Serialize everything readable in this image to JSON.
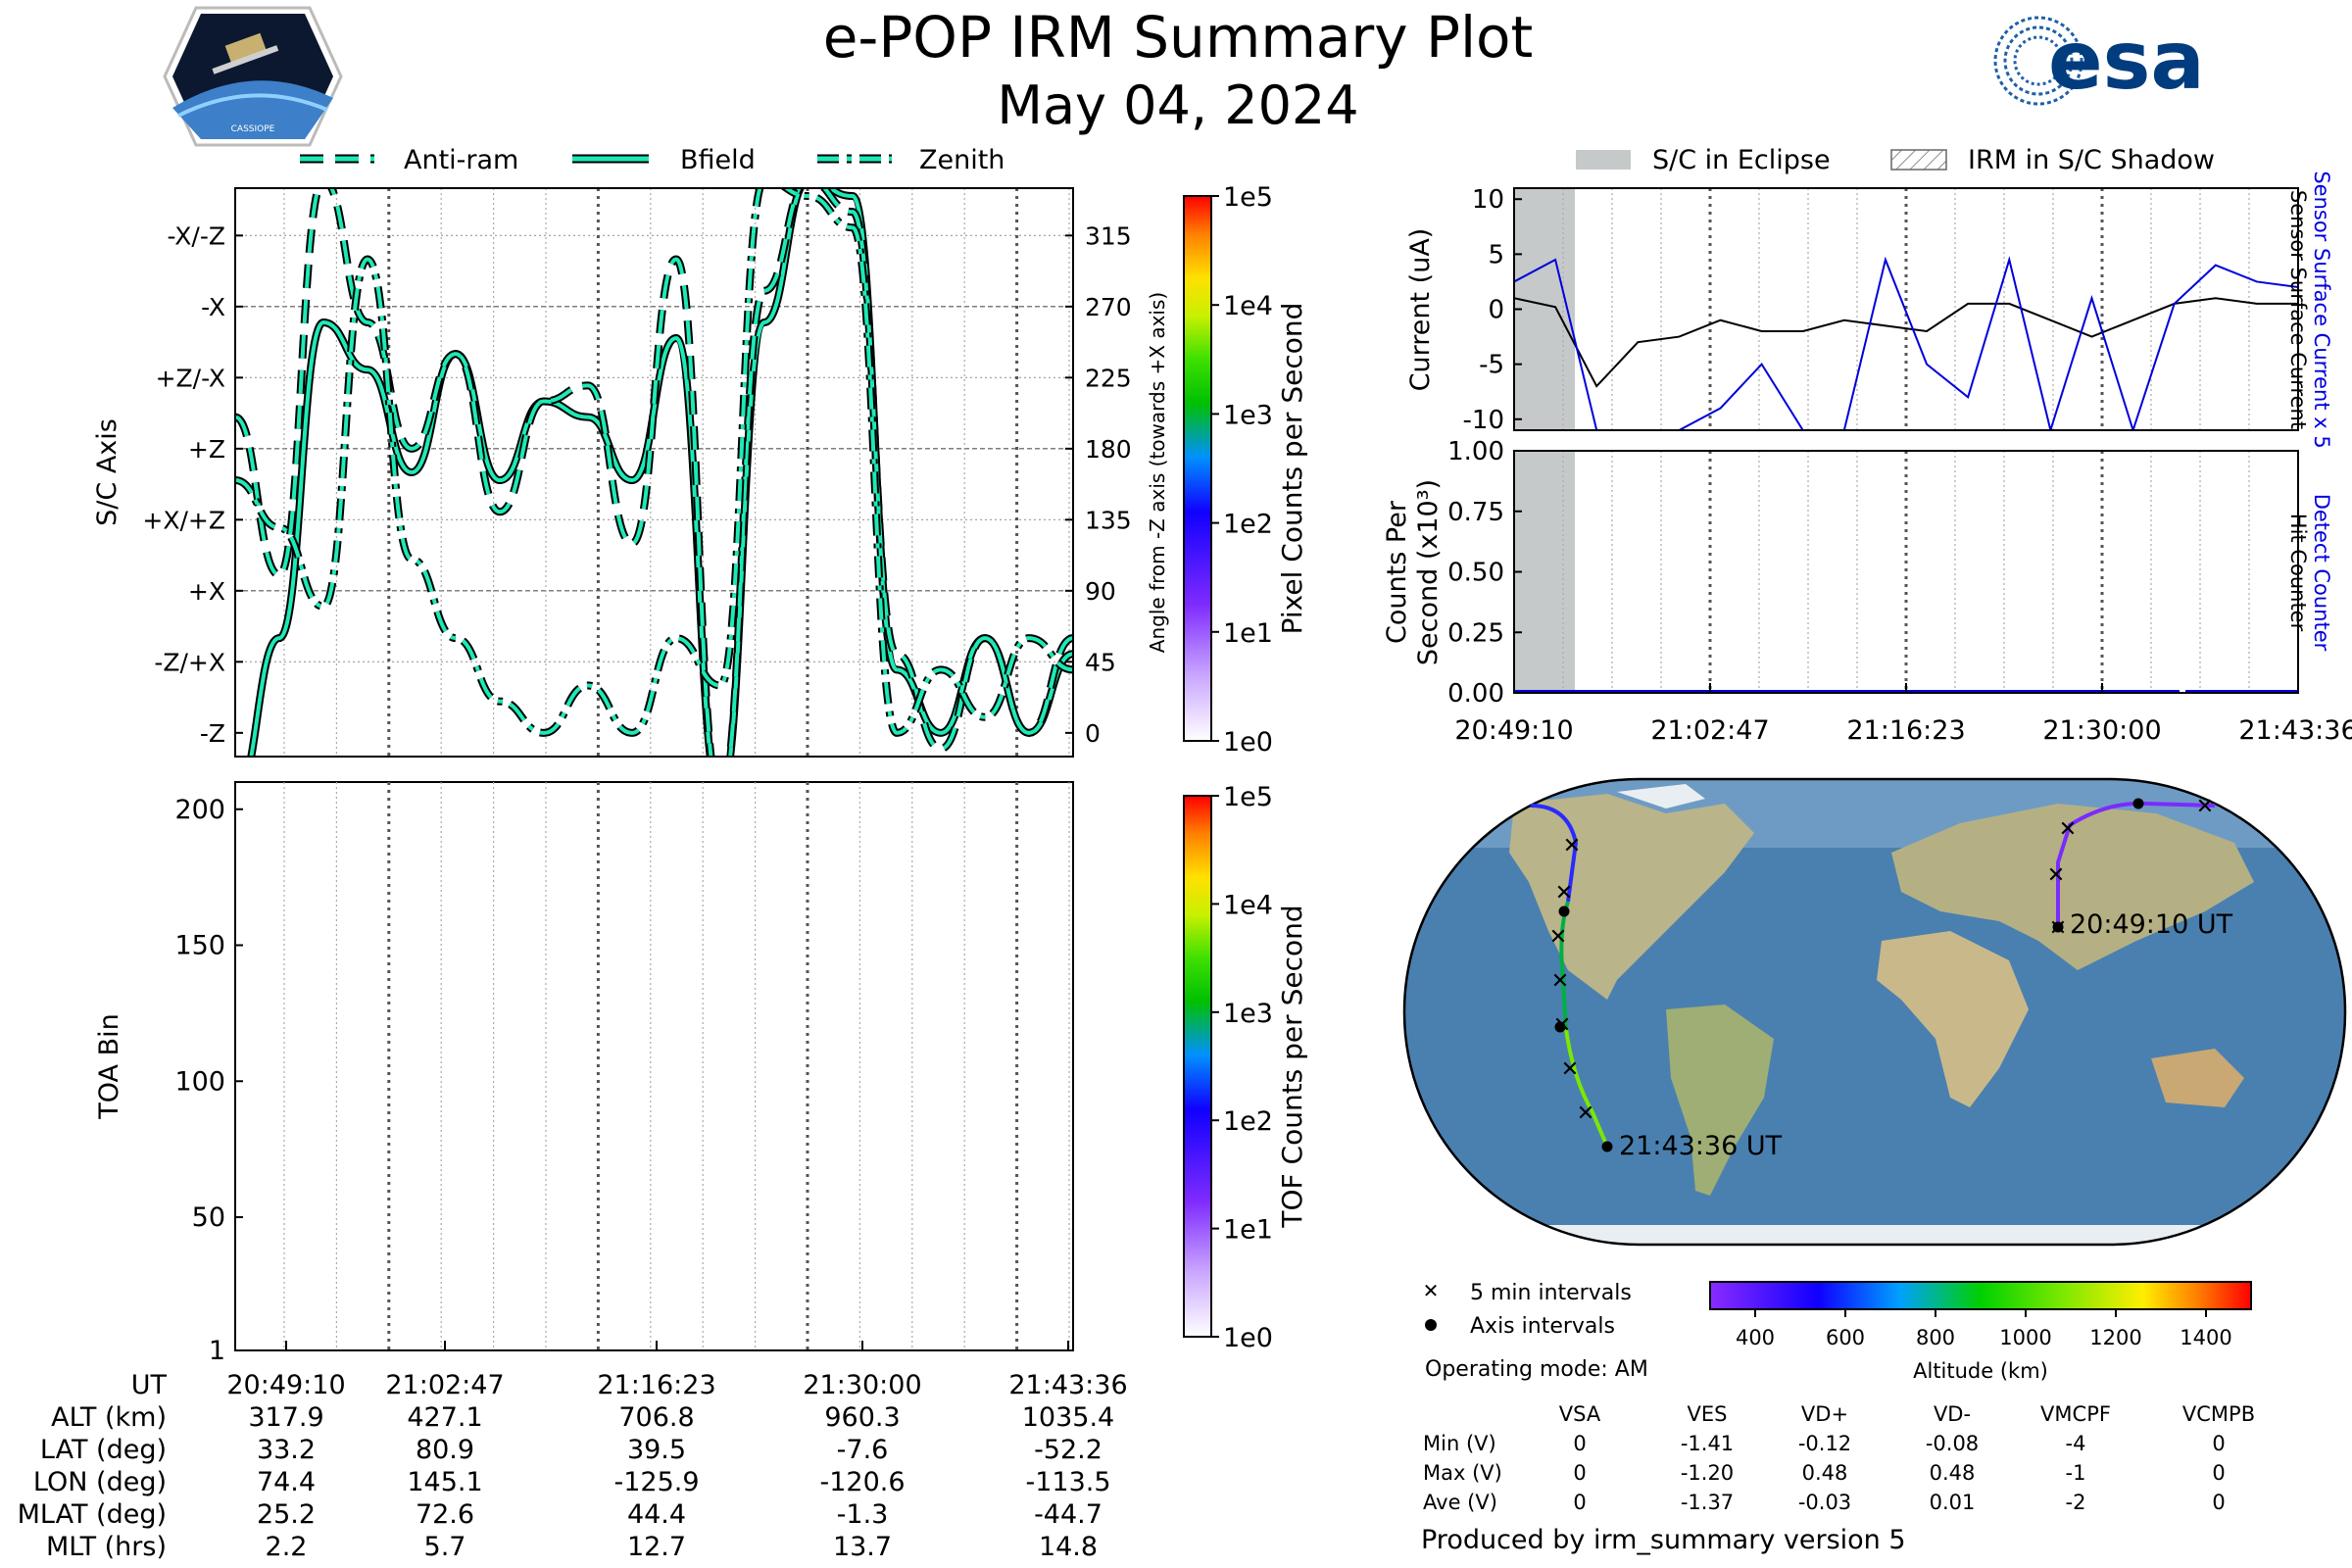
{
  "header": {
    "title": "e-POP IRM Summary Plot",
    "date": "May 04, 2024",
    "logo_left": "CASSIOPE",
    "logo_right": "esa"
  },
  "colors": {
    "trace": "#1de9b6",
    "eclipse": "#c6c9c9",
    "current_blue": "#0000dd",
    "ocean": "#4a80b0",
    "land": "#c9b98a"
  },
  "legend_top": {
    "antiram": "Anti-ram",
    "bfield": "Bfield",
    "zenith": "Zenith"
  },
  "panel_axis": {
    "ylabel": "S/C Axis",
    "y2label": "Angle from -Z axis (towards +X axis)",
    "ticks": [
      "-X/-Z",
      "-X",
      "+Z/-X",
      "+Z",
      "+X/+Z",
      "+X",
      "-Z/+X",
      "-Z"
    ],
    "angles": [
      "315",
      "270",
      "225",
      "180",
      "135",
      "90",
      "45",
      "0"
    ],
    "colorbar_label": "Pixel Counts per Second"
  },
  "panel_toa": {
    "ylabel": "TOA Bin",
    "ticks": [
      "200",
      "150",
      "100",
      "50",
      "1"
    ],
    "colorbar_label": "TOF Counts per Second"
  },
  "colorbar_ticks": [
    "1e5",
    "1e4",
    "1e3",
    "1e2",
    "1e1",
    "1e0"
  ],
  "time_table": {
    "rows": [
      {
        "label": "UT",
        "values": [
          "20:49:10",
          "21:02:47",
          "21:16:23",
          "21:30:00",
          "21:43:36"
        ]
      },
      {
        "label": "ALT (km)",
        "values": [
          "317.9",
          "427.1",
          "706.8",
          "960.3",
          "1035.4"
        ]
      },
      {
        "label": "LAT (deg)",
        "values": [
          "33.2",
          "80.9",
          "39.5",
          "-7.6",
          "-52.2"
        ]
      },
      {
        "label": "LON (deg)",
        "values": [
          "74.4",
          "145.1",
          "-125.9",
          "-120.6",
          "-113.5"
        ]
      },
      {
        "label": "MLAT (deg)",
        "values": [
          "25.2",
          "72.6",
          "44.4",
          "-1.3",
          "-44.7"
        ]
      },
      {
        "label": "MLT (hrs)",
        "values": [
          "2.2",
          "5.7",
          "12.7",
          "13.7",
          "14.8"
        ]
      }
    ]
  },
  "legend_right": {
    "eclipse": "S/C in Eclipse",
    "shadow": "IRM in S/C Shadow"
  },
  "panel_current": {
    "ylabel": "Current (uA)",
    "ticks": [
      "10",
      "5",
      "0",
      "-5",
      "-10"
    ],
    "right_blue": "Sensor Surface Current x 5",
    "right_black": "Sensor Surface Current"
  },
  "panel_counts": {
    "ylabel_1": "Counts Per",
    "ylabel_2": "Second (x10³)",
    "ticks": [
      "1.00",
      "0.75",
      "0.50",
      "0.25",
      "0.00"
    ],
    "right_blue": "Detect Counter",
    "right_black": "Hit Counter",
    "xticks": [
      "20:49:10",
      "21:02:47",
      "21:16:23",
      "21:30:00",
      "21:43:36"
    ]
  },
  "map": {
    "start_label": "20:49:10 UT",
    "end_label": "21:43:36 UT",
    "legend_5min": "5 min intervals",
    "legend_axis": "Axis intervals",
    "operating_mode": "Operating mode: AM",
    "altitude_label": "Altitude (km)",
    "altitude_ticks": [
      "400",
      "600",
      "800",
      "1000",
      "1200",
      "1400"
    ]
  },
  "chart_data": {
    "type": "line",
    "title": "e-POP IRM Summary Plot",
    "x_times": [
      "20:49:10",
      "21:02:47",
      "21:16:23",
      "21:30:00",
      "21:43:36"
    ],
    "current_panel": {
      "ylabel": "Current (uA)",
      "ylim": [
        -11,
        11
      ],
      "series": [
        {
          "name": "Sensor Surface Current",
          "values": [
            1.0,
            0.2,
            -7.0,
            -3.0,
            -2.5,
            -1.0,
            -2.0,
            -2.0,
            -1.0,
            -1.5,
            -2.0,
            0.5,
            0.5,
            -1.0,
            -2.5,
            -1.0,
            0.5,
            1.0,
            0.5,
            0.5
          ]
        },
        {
          "name": "Sensor Surface Current x 5",
          "values": [
            2.5,
            4.5,
            -11.0,
            -11.0,
            -11.0,
            -9.0,
            -5.0,
            -11.0,
            -11.0,
            4.5,
            -5.0,
            -8.0,
            4.5,
            -11.0,
            1.0,
            -11.0,
            0.5,
            4.0,
            2.5,
            2.0
          ]
        }
      ]
    },
    "counts_panel": {
      "ylabel": "Counts Per Second (x10^3)",
      "ylim": [
        0,
        1.0
      ],
      "series": [
        {
          "name": "Detect Counter",
          "values": [
            0,
            0,
            0,
            0,
            0
          ]
        },
        {
          "name": "Hit Counter",
          "values": [
            0,
            0,
            0,
            0,
            0
          ]
        }
      ]
    },
    "axis_panel": {
      "ylabel": "Angle from -Z axis (deg)",
      "ylim": [
        -15,
        345
      ],
      "series": [
        {
          "name": "Bfield",
          "values": [
            -40,
            60,
            260,
            230,
            165,
            240,
            160,
            210,
            200,
            160,
            250,
            -40,
            260,
            350,
            340,
            40,
            0,
            60,
            0,
            50
          ]
        },
        {
          "name": "Anti-ram",
          "values": [
            200,
            100,
            350,
            260,
            180,
            240,
            140,
            210,
            220,
            120,
            300,
            -40,
            280,
            350,
            330,
            50,
            -10,
            60,
            0,
            60
          ]
        },
        {
          "name": "Zenith",
          "values": [
            160,
            130,
            80,
            300,
            110,
            60,
            20,
            0,
            30,
            0,
            60,
            30,
            350,
            340,
            320,
            0,
            40,
            10,
            60,
            40
          ]
        }
      ]
    },
    "toa_panel": {
      "ylabel": "TOA Bin",
      "ylim": [
        1,
        210
      ],
      "values": []
    },
    "colorbar_ticks": [
      "1e0",
      "1e1",
      "1e2",
      "1e3",
      "1e4",
      "1e5"
    ],
    "altitude_range_km": [
      300,
      1500
    ],
    "voltage_table": {
      "columns": [
        "VSA",
        "VES",
        "VD+",
        "VD-",
        "VMCPF",
        "VCMPB"
      ],
      "rows": [
        {
          "label": "Min (V)",
          "values": [
            "0",
            "-1.41",
            "-0.12",
            "-0.08",
            "-4",
            "0"
          ]
        },
        {
          "label": "Max (V)",
          "values": [
            "0",
            "-1.20",
            "0.48",
            "0.48",
            "-1",
            "0"
          ]
        },
        {
          "label": "Ave (V)",
          "values": [
            "0",
            "-1.37",
            "-0.03",
            "0.01",
            "-2",
            "0"
          ]
        }
      ]
    }
  },
  "footer": "Produced by irm_summary version 5"
}
